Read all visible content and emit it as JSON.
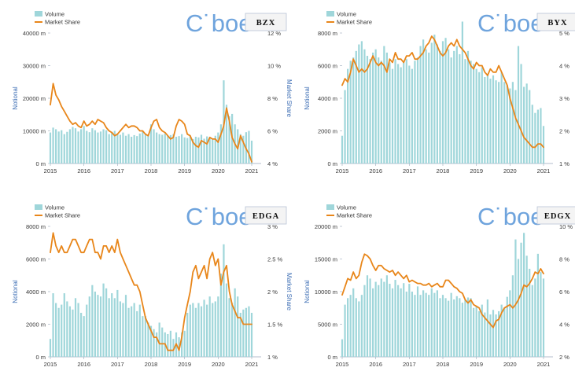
{
  "legend": {
    "volume": "Volume",
    "market_share": "Market Share"
  },
  "axis_labels": {
    "left": "Notional",
    "right": "Market Share"
  },
  "logo_text": "C˙boe",
  "colors": {
    "volume": "#9fd6da",
    "market_share": "#e8861a",
    "axis_title": "#3f6fb5",
    "logo": "#6fa4dd"
  },
  "years": [
    "2015",
    "2016",
    "2017",
    "2018",
    "2019",
    "2020",
    "2021"
  ],
  "chart_data": [
    {
      "type": "bar",
      "ticker": "BZX",
      "left_ticks": [
        "0 m",
        "10000 m",
        "20000 m",
        "30000 m",
        "40000 m"
      ],
      "right_ticks": [
        "4 %",
        "6 %",
        "8 %",
        "10 %",
        "12 %"
      ],
      "left_range": [
        0,
        40000
      ],
      "right_range": [
        4,
        12
      ],
      "x_range": [
        2015,
        2021
      ],
      "volume_m": [
        9500,
        11000,
        10500,
        9800,
        10200,
        9000,
        9700,
        10500,
        11200,
        10800,
        9800,
        10500,
        11500,
        10000,
        9600,
        10800,
        10200,
        9500,
        9800,
        10500,
        10200,
        9000,
        9700,
        10000,
        9200,
        8800,
        9500,
        8500,
        9000,
        8200,
        8700,
        8400,
        9200,
        9800,
        9000,
        8800,
        12000,
        10500,
        9500,
        9000,
        8800,
        9200,
        8500,
        8700,
        9000,
        8200,
        8400,
        9000,
        8000,
        7800,
        8500,
        7500,
        8200,
        8000,
        8800,
        7600,
        8300,
        8000,
        7700,
        8500,
        9500,
        12000,
        25500,
        18000,
        14500,
        15200,
        12000,
        10500,
        9000,
        8500,
        9600,
        10000,
        7000
      ],
      "market_share_pct": [
        7.6,
        8.9,
        8.2,
        7.9,
        7.5,
        7.2,
        6.9,
        6.6,
        6.4,
        6.5,
        6.3,
        6.2,
        6.6,
        6.3,
        6.4,
        6.6,
        6.4,
        6.7,
        6.6,
        6.5,
        6.2,
        6.0,
        5.9,
        5.7,
        5.8,
        6.0,
        6.2,
        6.4,
        6.2,
        6.3,
        6.3,
        6.2,
        6.0,
        6.0,
        5.8,
        5.7,
        6.2,
        6.6,
        6.7,
        6.2,
        6.0,
        5.9,
        5.7,
        5.5,
        5.6,
        6.3,
        6.7,
        6.6,
        6.4,
        5.8,
        5.7,
        5.3,
        5.1,
        5.0,
        5.4,
        5.3,
        5.2,
        5.6,
        5.5,
        5.5,
        5.3,
        5.8,
        6.3,
        7.4,
        6.6,
        5.6,
        5.2,
        4.9,
        5.7,
        5.3,
        4.9,
        4.6,
        4.1
      ]
    },
    {
      "type": "bar",
      "ticker": "BYX",
      "left_ticks": [
        "0 m",
        "2000 m",
        "4000 m",
        "6000 m",
        "8000 m"
      ],
      "right_ticks": [
        "1 %",
        "2 %",
        "3 %",
        "4 %",
        "5 %"
      ],
      "left_range": [
        0,
        8000
      ],
      "right_range": [
        1,
        5
      ],
      "x_range": [
        2015,
        2021
      ],
      "volume_m": [
        1700,
        4500,
        5800,
        6300,
        6500,
        6900,
        7300,
        7500,
        7000,
        6600,
        6400,
        6800,
        7000,
        6500,
        6300,
        7200,
        6800,
        6200,
        5800,
        6400,
        6100,
        5900,
        6200,
        6400,
        6000,
        5800,
        6300,
        6500,
        7200,
        7600,
        7000,
        6800,
        7400,
        7900,
        7300,
        6900,
        7500,
        7700,
        7000,
        6500,
        6900,
        7200,
        6700,
        8700,
        6400,
        6900,
        6300,
        6100,
        5800,
        5600,
        5900,
        5300,
        5500,
        5200,
        5400,
        5100,
        5000,
        5600,
        5000,
        4800,
        4600,
        5000,
        4500,
        7200,
        6100,
        4700,
        4900,
        4500,
        3600,
        3100,
        3300,
        3400,
        2300
      ],
      "market_share_pct": [
        3.4,
        3.6,
        3.5,
        3.8,
        4.2,
        4.0,
        3.8,
        3.9,
        3.8,
        3.9,
        4.1,
        4.3,
        4.1,
        4.0,
        4.1,
        4.0,
        3.8,
        4.2,
        4.1,
        4.4,
        4.2,
        4.2,
        4.1,
        4.3,
        4.3,
        4.4,
        4.2,
        4.2,
        4.3,
        4.4,
        4.6,
        4.7,
        4.9,
        4.8,
        4.6,
        4.4,
        4.3,
        4.4,
        4.6,
        4.7,
        4.6,
        4.8,
        4.6,
        4.5,
        4.4,
        4.2,
        4.0,
        3.9,
        4.1,
        4.0,
        4.0,
        3.8,
        3.7,
        3.9,
        3.8,
        3.8,
        4.0,
        3.8,
        3.6,
        3.4,
        3.0,
        2.7,
        2.4,
        2.2,
        2.0,
        1.8,
        1.7,
        1.6,
        1.5,
        1.5,
        1.6,
        1.6,
        1.5
      ]
    },
    {
      "type": "bar",
      "ticker": "EDGA",
      "left_ticks": [
        "0 m",
        "2000 m",
        "4000 m",
        "6000 m",
        "8000 m"
      ],
      "right_ticks": [
        "1 %",
        "1.5 %",
        "2 %",
        "2.5 %",
        "3 %"
      ],
      "left_range": [
        0,
        8000
      ],
      "right_range": [
        1,
        3
      ],
      "x_range": [
        2015,
        2021
      ],
      "volume_m": [
        1100,
        3900,
        3300,
        3000,
        3200,
        3900,
        3400,
        3100,
        2900,
        3600,
        3300,
        2700,
        2500,
        3200,
        3700,
        4400,
        4000,
        3800,
        3700,
        4500,
        4200,
        3600,
        3900,
        3600,
        4100,
        3400,
        3300,
        3800,
        3000,
        3100,
        3300,
        2800,
        3200,
        2500,
        2500,
        2100,
        1900,
        1700,
        1500,
        2100,
        1800,
        1500,
        1400,
        1600,
        1100,
        1500,
        1200,
        1500,
        1600,
        2700,
        3200,
        3300,
        3000,
        3300,
        3100,
        3500,
        3200,
        3700,
        3300,
        3400,
        3700,
        5100,
        6900,
        4500,
        3600,
        3300,
        4200,
        3700,
        2700,
        2900,
        3000,
        3100,
        2700
      ],
      "market_share_pct": [
        2.6,
        2.9,
        2.7,
        2.6,
        2.7,
        2.6,
        2.6,
        2.7,
        2.8,
        2.8,
        2.7,
        2.6,
        2.6,
        2.7,
        2.8,
        2.8,
        2.6,
        2.6,
        2.5,
        2.7,
        2.7,
        2.6,
        2.7,
        2.6,
        2.8,
        2.6,
        2.5,
        2.4,
        2.3,
        2.2,
        2.1,
        2.1,
        2.0,
        1.8,
        1.6,
        1.5,
        1.4,
        1.3,
        1.3,
        1.2,
        1.2,
        1.2,
        1.1,
        1.1,
        1.1,
        1.2,
        1.1,
        1.3,
        1.6,
        1.8,
        2.0,
        2.3,
        2.4,
        2.2,
        2.3,
        2.4,
        2.2,
        2.5,
        2.6,
        2.4,
        2.5,
        2.1,
        2.3,
        2.4,
        2.0,
        1.8,
        1.7,
        1.6,
        1.6,
        1.5,
        1.5,
        1.5,
        1.5
      ],
      "vol_scale": 1
    },
    {
      "type": "bar",
      "ticker": "EDGX",
      "left_ticks": [
        "0 m",
        "5000 m",
        "10000 m",
        "15000 m",
        "20000 m"
      ],
      "right_ticks": [
        "2 %",
        "4 %",
        "6 %",
        "8 %",
        "10 %"
      ],
      "left_range": [
        0,
        20000
      ],
      "right_range": [
        2,
        10
      ],
      "x_range": [
        2015,
        2021
      ],
      "volume_m": [
        2700,
        8000,
        9000,
        9500,
        10500,
        9000,
        8500,
        9500,
        11000,
        12500,
        12000,
        10500,
        11500,
        11000,
        12000,
        11500,
        12500,
        11200,
        10500,
        11800,
        11000,
        10500,
        11300,
        10000,
        11200,
        10000,
        9500,
        10800,
        9500,
        10200,
        9800,
        9500,
        10500,
        9800,
        10200,
        9000,
        9500,
        9000,
        8600,
        9800,
        8800,
        9300,
        9000,
        8300,
        8700,
        9100,
        9000,
        7500,
        7800,
        7000,
        8000,
        6800,
        8800,
        6500,
        7200,
        6500,
        7000,
        8000,
        7500,
        9200,
        10200,
        12500,
        18000,
        15000,
        17500,
        19000,
        15500,
        13500,
        11000,
        12000,
        15800,
        13000,
        12000
      ],
      "market_share_pct": [
        5.8,
        6.3,
        6.8,
        6.7,
        7.2,
        6.8,
        7.0,
        7.8,
        8.3,
        8.2,
        8.0,
        7.6,
        7.3,
        7.6,
        7.6,
        7.4,
        7.3,
        7.2,
        7.3,
        7.0,
        7.2,
        7.0,
        6.8,
        7.0,
        6.6,
        6.7,
        6.6,
        6.5,
        6.5,
        6.4,
        6.4,
        6.5,
        6.3,
        6.4,
        6.5,
        6.3,
        6.3,
        6.7,
        6.7,
        6.5,
        6.3,
        6.2,
        6.0,
        5.9,
        5.5,
        5.3,
        5.5,
        5.2,
        5.1,
        5.0,
        4.6,
        4.4,
        4.2,
        4.0,
        3.8,
        4.2,
        4.3,
        4.7,
        5.0,
        5.1,
        5.2,
        5.0,
        5.2,
        5.5,
        5.9,
        6.4,
        6.3,
        6.5,
        6.8,
        7.2,
        7.1,
        7.4,
        7.1
      ]
    }
  ]
}
